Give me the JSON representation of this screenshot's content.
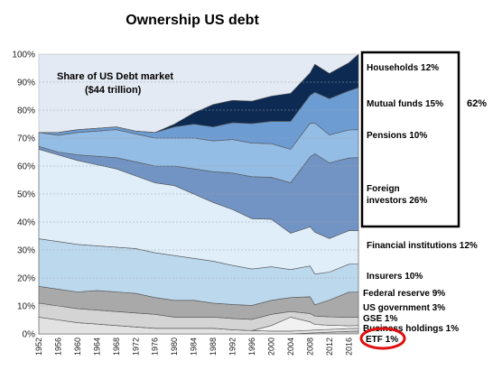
{
  "chart_data": {
    "type": "area",
    "title": "Ownership US debt",
    "annotation": [
      "Share of US Debt market",
      "($44 trillion)"
    ],
    "bracket_total": "62%",
    "stacked": true,
    "ylim": [
      0,
      100
    ],
    "y_ticks": [
      "0%",
      "10%",
      "20%",
      "30%",
      "40%",
      "50%",
      "60%",
      "70%",
      "80%",
      "90%",
      "100%"
    ],
    "x_ticks": [
      "1952",
      "1956",
      "1960",
      "1964",
      "1968",
      "1972",
      "1976",
      "1980",
      "1984",
      "1988",
      "1992",
      "1996",
      "2000",
      "2004",
      "2008",
      "2012",
      "2016"
    ],
    "xlim": [
      1952,
      2018
    ],
    "grid": true,
    "legend": "right",
    "series_x": [
      1952,
      1956,
      1960,
      1964,
      1968,
      1972,
      1976,
      1980,
      1984,
      1988,
      1992,
      1996,
      2000,
      2004,
      2008,
      2009,
      2012,
      2016,
      2018
    ],
    "series": [
      {
        "name": "ETF 1%",
        "color": "#c0c0c0",
        "values": [
          0,
          0,
          0,
          0,
          0,
          0,
          0,
          0,
          0,
          0,
          0,
          0,
          0,
          0,
          0.3,
          0.4,
          0.6,
          0.9,
          1.0
        ]
      },
      {
        "name": "Business holdings 1%",
        "color": "#e2e2e2",
        "values": [
          6,
          5,
          4,
          3.5,
          3,
          2.5,
          2,
          2,
          2,
          2,
          1.5,
          1.2,
          1,
          1,
          1,
          1,
          1,
          1,
          1
        ]
      },
      {
        "name": "GSE 1%",
        "color": "#f1f1f1",
        "values": [
          0,
          0,
          0,
          0,
          0,
          0,
          0,
          0,
          0,
          0,
          0,
          0,
          2,
          5,
          3,
          2,
          1.5,
          1,
          1
        ]
      },
      {
        "name": "US government 3%",
        "color": "#d4d4d4",
        "values": [
          5,
          5,
          5,
          5,
          5,
          5,
          5,
          4,
          4,
          4,
          4,
          4,
          4,
          2,
          3,
          3,
          3,
          3,
          3
        ]
      },
      {
        "name": "Federal reserve 9%",
        "color": "#a9a9a9",
        "values": [
          6,
          6,
          6,
          7,
          7,
          7,
          6,
          6,
          6,
          5,
          5,
          5,
          5,
          5,
          6,
          4,
          6,
          9,
          9
        ]
      },
      {
        "name": "Insurers 10%",
        "color": "#bcd8ec",
        "values": [
          17,
          17,
          17,
          16,
          16,
          16,
          16,
          16,
          15,
          15,
          14,
          13,
          12,
          10,
          11,
          11,
          10,
          10,
          10
        ]
      },
      {
        "name": "Financial institutions 12%",
        "color": "#e0eefa",
        "values": [
          32,
          31,
          30,
          29,
          28,
          26,
          25,
          25,
          23,
          21,
          20,
          18,
          17,
          13,
          14,
          15,
          12,
          12,
          12
        ]
      },
      {
        "name": "Foreign investors 26%",
        "color": "#7294c4",
        "values": [
          1,
          1,
          2,
          3,
          4,
          5,
          6,
          7,
          9,
          11,
          13,
          15,
          15,
          18,
          25,
          28,
          27,
          26,
          26
        ]
      },
      {
        "name": "Pensions 10%",
        "color": "#94bde6",
        "values": [
          5,
          6,
          8,
          9,
          10,
          10,
          10,
          10,
          11,
          11,
          12,
          12,
          12,
          12,
          12,
          11,
          10,
          10,
          10
        ]
      },
      {
        "name": "Mutual funds 15%",
        "color": "#6d9cd3",
        "values": [
          0,
          1,
          1,
          1,
          1,
          1,
          2,
          4,
          5,
          5,
          6,
          7,
          8,
          10,
          10,
          11,
          13,
          14,
          15
        ]
      },
      {
        "name": "Households 12%",
        "color": "#0d2a52",
        "values": [
          0,
          0,
          0,
          0,
          0,
          0,
          0,
          1,
          4,
          8,
          8,
          8,
          9,
          10,
          8,
          10,
          9,
          10,
          12
        ]
      }
    ]
  }
}
